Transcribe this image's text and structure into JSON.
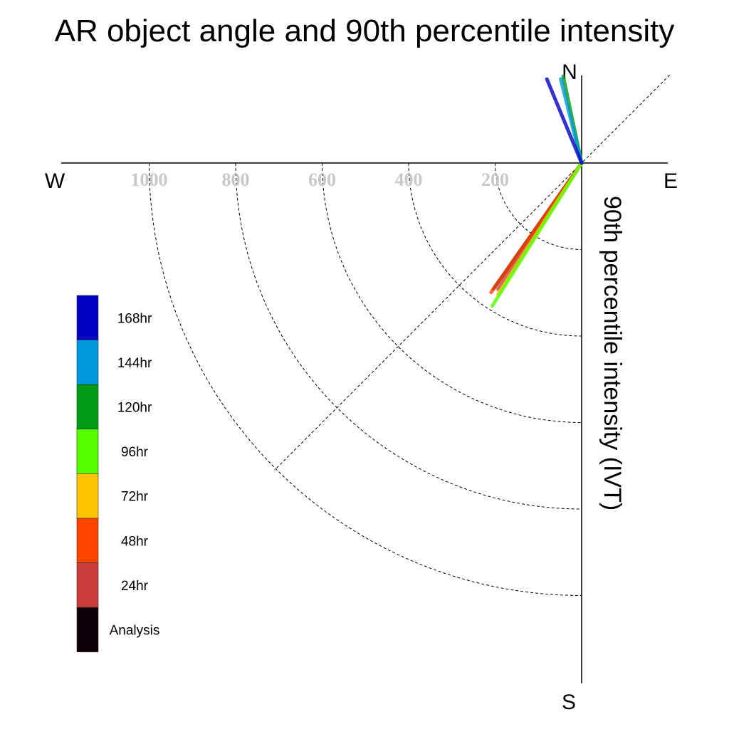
{
  "chart_data": {
    "type": "polar-vector",
    "title": "AR object angle and 90th percentile intensity",
    "ylabel": "90th percentile intensity (IVT)",
    "compass": {
      "north": "N",
      "south": "S",
      "east": "E",
      "west": "W"
    },
    "radial_ticks": [
      200,
      400,
      600,
      800,
      1000
    ],
    "radial_tick_labels": [
      "200",
      "400",
      "600",
      "800",
      "1000"
    ],
    "radial_max": 1200,
    "angle_reference": "direction measured clockwise from north, degrees",
    "series": [
      {
        "name": "Analysis",
        "color": "#0d0008",
        "angle_deg": 215.0,
        "magnitude": 355
      },
      {
        "name": "24hr",
        "color": "#cc3c3c",
        "angle_deg": 213.5,
        "magnitude": 350
      },
      {
        "name": "48hr",
        "color": "#ff4400",
        "angle_deg": 215.0,
        "magnitude": 365
      },
      {
        "name": "72hr",
        "color": "#ffc400",
        "angle_deg": 212.5,
        "magnitude": 360
      },
      {
        "name": "96hr",
        "color": "#55ff00",
        "angle_deg": 212.0,
        "magnitude": 390
      },
      {
        "name": "120hr",
        "color": "#009c16",
        "angle_deg": 348.0,
        "magnitude": 205
      },
      {
        "name": "144hr",
        "color": "#0098dc",
        "angle_deg": 346.0,
        "magnitude": 200
      },
      {
        "name": "168hr",
        "color": "#0000c4",
        "angle_deg": 337.5,
        "magnitude": 210
      }
    ],
    "legend": {
      "placement": "left",
      "entries": [
        "168hr",
        "144hr",
        "120hr",
        "96hr",
        "72hr",
        "48hr",
        "24hr",
        "Analysis"
      ],
      "colors": [
        "#0000c4",
        "#0098dc",
        "#009c16",
        "#55ff00",
        "#ffc400",
        "#ff4400",
        "#cc3c3c",
        "#0d0008"
      ]
    }
  }
}
